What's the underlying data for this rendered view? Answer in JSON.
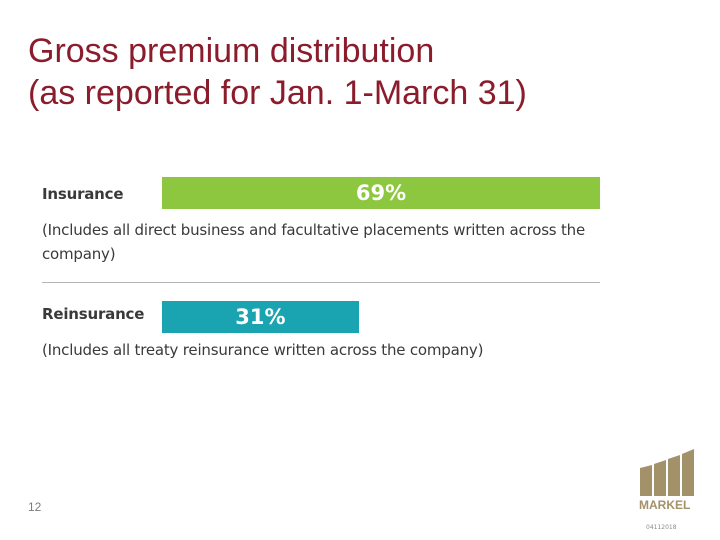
{
  "title": {
    "line1": "Gross premium distribution",
    "line2": "(as reported for Jan. 1-March 31)"
  },
  "chart_data": {
    "type": "bar",
    "categories": [
      "Insurance",
      "Reinsurance"
    ],
    "values": [
      69,
      31
    ],
    "value_labels": [
      "69%",
      "31%"
    ],
    "notes": [
      "(Includes all direct business and facultative placements written across the company)",
      "(Includes all treaty reinsurance written across the company)"
    ],
    "colors": [
      "#8dc63f",
      "#1aa3b0"
    ],
    "xlim": [
      0,
      69
    ]
  },
  "footer": {
    "page_number": "12",
    "logo_text": "MARKEL",
    "code": "04112018"
  },
  "colors": {
    "title": "#8a1c2c",
    "logo": "#a3916a"
  }
}
